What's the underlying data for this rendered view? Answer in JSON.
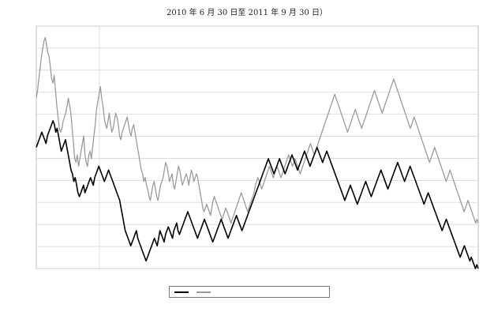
{
  "title_line1": "",
  "title_line2": "2010 年 6 月 30 日至 2011 年 9 月 30 日）",
  "chart_data": {
    "type": "line",
    "title": "",
    "subtitle": "2010 年 6 月 30 日至 2011 年 9 月 30 日）",
    "xlabel": "",
    "ylabel": "",
    "ylim": [
      -40,
      24
    ],
    "grid": true,
    "legend": "bottom",
    "x_ticks": [
      "",
      "",
      "",
      "",
      "",
      "",
      "",
      ""
    ],
    "series": [
      {
        "name": "",
        "color": "#9a9a9a",
        "values": [
          5,
          7,
          10,
          13,
          16,
          18,
          20,
          21,
          19,
          17,
          16,
          13,
          10,
          9,
          11,
          7,
          3,
          0,
          -3,
          -4,
          -3,
          -1,
          0,
          1,
          3,
          5,
          3,
          1,
          -3,
          -7,
          -11,
          -12,
          -10,
          -13,
          -11,
          -9,
          -7,
          -5,
          -10,
          -12,
          -13,
          -10,
          -9,
          -11,
          -8,
          -5,
          -2,
          2,
          4,
          6,
          8,
          5,
          3,
          0,
          -2,
          -3,
          -1,
          1,
          -2,
          -4,
          -3,
          -1,
          1,
          0,
          -2,
          -5,
          -6,
          -4,
          -3,
          -2,
          -1,
          0,
          -2,
          -4,
          -5,
          -3,
          -2,
          -4,
          -6,
          -8,
          -10,
          -12,
          -14,
          -15,
          -17,
          -16,
          -18,
          -19,
          -21,
          -22,
          -20,
          -18,
          -17,
          -19,
          -21,
          -22,
          -20,
          -18,
          -17,
          -16,
          -14,
          -12,
          -13,
          -15,
          -17,
          -16,
          -15,
          -18,
          -19,
          -17,
          -15,
          -13,
          -14,
          -16,
          -18,
          -17,
          -16,
          -15,
          -16,
          -18,
          -16,
          -14,
          -15,
          -17,
          -16,
          -15,
          -16,
          -18,
          -20,
          -22,
          -24,
          -25,
          -24,
          -23,
          -24,
          -25,
          -26,
          -24,
          -22,
          -21,
          -22,
          -23,
          -24,
          -25,
          -26,
          -27,
          -26,
          -25,
          -24,
          -25,
          -26,
          -27,
          -28,
          -27,
          -26,
          -25,
          -24,
          -23,
          -22,
          -21,
          -20,
          -21,
          -22,
          -23,
          -24,
          -25,
          -24,
          -23,
          -22,
          -21,
          -20,
          -18,
          -17,
          -16,
          -17,
          -18,
          -19,
          -18,
          -17,
          -16,
          -15,
          -14,
          -13,
          -14,
          -15,
          -16,
          -15,
          -14,
          -13,
          -14,
          -15,
          -16,
          -15,
          -14,
          -13,
          -12,
          -11,
          -10,
          -11,
          -12,
          -13,
          -12,
          -11,
          -12,
          -13,
          -14,
          -15,
          -14,
          -13,
          -12,
          -11,
          -10,
          -9,
          -8,
          -7,
          -8,
          -9,
          -10,
          -9,
          -8,
          -7,
          -6,
          -5,
          -4,
          -3,
          -2,
          -1,
          0,
          1,
          2,
          3,
          4,
          5,
          6,
          5,
          4,
          3,
          2,
          1,
          0,
          -1,
          -2,
          -3,
          -4,
          -3,
          -2,
          -1,
          0,
          1,
          2,
          1,
          0,
          -1,
          -2,
          -3,
          -2,
          -1,
          0,
          1,
          2,
          3,
          4,
          5,
          6,
          7,
          6,
          5,
          4,
          3,
          2,
          1,
          2,
          3,
          4,
          5,
          6,
          7,
          8,
          9,
          10,
          9,
          8,
          7,
          6,
          5,
          4,
          3,
          2,
          1,
          0,
          -1,
          -2,
          -3,
          -2,
          -1,
          0,
          -1,
          -2,
          -3,
          -4,
          -5,
          -6,
          -7,
          -8,
          -9,
          -10,
          -11,
          -12,
          -11,
          -10,
          -9,
          -8,
          -9,
          -10,
          -11,
          -12,
          -13,
          -14,
          -15,
          -16,
          -17,
          -16,
          -15,
          -14,
          -15,
          -16,
          -17,
          -18,
          -19,
          -20,
          -21,
          -22,
          -23,
          -24,
          -25,
          -24,
          -23,
          -22,
          -23,
          -24,
          -25,
          -26,
          -27,
          -28,
          -27,
          -28
        ]
      },
      {
        "name": "",
        "color": "#000000",
        "values": [
          -8,
          -7,
          -6,
          -5,
          -4,
          -5,
          -6,
          -7,
          -5,
          -4,
          -3,
          -2,
          -1,
          -2,
          -4,
          -3,
          -5,
          -7,
          -9,
          -8,
          -7,
          -6,
          -8,
          -10,
          -12,
          -14,
          -15,
          -17,
          -16,
          -18,
          -20,
          -21,
          -20,
          -19,
          -18,
          -20,
          -19,
          -18,
          -17,
          -16,
          -17,
          -18,
          -16,
          -15,
          -14,
          -13,
          -14,
          -15,
          -16,
          -17,
          -16,
          -15,
          -14,
          -15,
          -16,
          -17,
          -18,
          -19,
          -20,
          -21,
          -22,
          -24,
          -26,
          -28,
          -30,
          -31,
          -32,
          -33,
          -34,
          -33,
          -32,
          -31,
          -30,
          -32,
          -33,
          -34,
          -35,
          -36,
          -37,
          -38,
          -37,
          -36,
          -35,
          -34,
          -33,
          -32,
          -33,
          -34,
          -32,
          -30,
          -31,
          -32,
          -33,
          -31,
          -30,
          -29,
          -30,
          -31,
          -32,
          -30,
          -29,
          -28,
          -30,
          -31,
          -30,
          -29,
          -28,
          -27,
          -26,
          -25,
          -26,
          -27,
          -28,
          -29,
          -30,
          -31,
          -32,
          -31,
          -30,
          -29,
          -28,
          -27,
          -28,
          -29,
          -30,
          -31,
          -32,
          -33,
          -32,
          -31,
          -30,
          -29,
          -28,
          -27,
          -28,
          -29,
          -30,
          -31,
          -32,
          -31,
          -30,
          -29,
          -28,
          -27,
          -26,
          -27,
          -28,
          -29,
          -30,
          -29,
          -28,
          -27,
          -26,
          -25,
          -24,
          -23,
          -22,
          -21,
          -20,
          -19,
          -18,
          -17,
          -16,
          -15,
          -14,
          -13,
          -12,
          -11,
          -12,
          -13,
          -14,
          -15,
          -14,
          -13,
          -12,
          -11,
          -12,
          -13,
          -14,
          -15,
          -14,
          -13,
          -12,
          -11,
          -10,
          -11,
          -12,
          -13,
          -14,
          -13,
          -12,
          -11,
          -10,
          -9,
          -10,
          -11,
          -12,
          -13,
          -12,
          -11,
          -10,
          -9,
          -8,
          -9,
          -10,
          -11,
          -12,
          -11,
          -10,
          -9,
          -10,
          -11,
          -12,
          -13,
          -14,
          -15,
          -16,
          -17,
          -18,
          -19,
          -20,
          -21,
          -22,
          -21,
          -20,
          -19,
          -18,
          -19,
          -20,
          -21,
          -22,
          -23,
          -22,
          -21,
          -20,
          -19,
          -18,
          -17,
          -18,
          -19,
          -20,
          -21,
          -20,
          -19,
          -18,
          -17,
          -16,
          -15,
          -14,
          -15,
          -16,
          -17,
          -18,
          -19,
          -18,
          -17,
          -16,
          -15,
          -14,
          -13,
          -12,
          -13,
          -14,
          -15,
          -16,
          -17,
          -16,
          -15,
          -14,
          -13,
          -14,
          -15,
          -16,
          -17,
          -18,
          -19,
          -20,
          -21,
          -22,
          -23,
          -22,
          -21,
          -20,
          -21,
          -22,
          -23,
          -24,
          -25,
          -26,
          -27,
          -28,
          -29,
          -30,
          -29,
          -28,
          -27,
          -28,
          -29,
          -30,
          -31,
          -32,
          -33,
          -34,
          -35,
          -36,
          -37,
          -36,
          -35,
          -34,
          -35,
          -36,
          -37,
          -38,
          -37,
          -38,
          -39,
          -40,
          -39,
          -40
        ]
      }
    ]
  },
  "legend": {
    "items": [
      {
        "label": "",
        "color": "#000000"
      },
      {
        "label": "",
        "color": "#9a9a9a"
      }
    ]
  }
}
